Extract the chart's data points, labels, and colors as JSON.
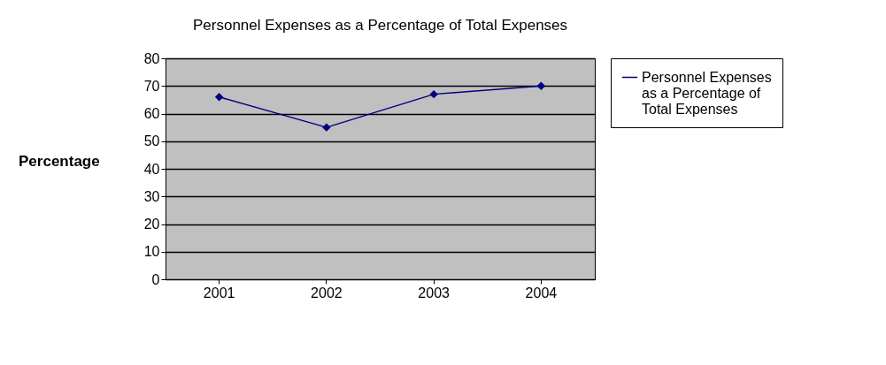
{
  "chart_data": {
    "type": "line",
    "title": "Personnel Expenses as a Percentage of Total Expenses",
    "ylabel": "Percentage",
    "categories": [
      "2001",
      "2002",
      "2003",
      "2004"
    ],
    "series": [
      {
        "name": "Personnel Expenses as a Percentage of Total Expenses",
        "color": "#000080",
        "values": [
          66,
          55,
          67,
          70
        ]
      }
    ],
    "ylim": [
      0,
      80
    ],
    "yticks": [
      0,
      10,
      20,
      30,
      40,
      50,
      60,
      70,
      80
    ],
    "grid": "y",
    "legend": "right",
    "marker": "diamond",
    "line_style": "solid"
  }
}
